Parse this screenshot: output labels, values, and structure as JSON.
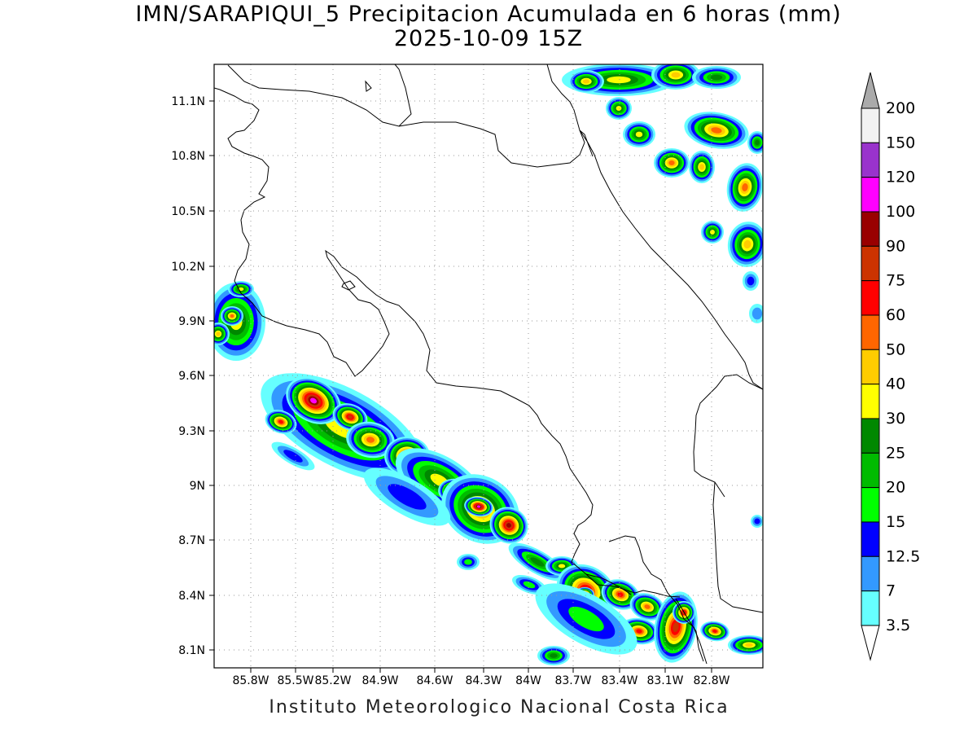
{
  "map": {
    "title_line1": "IMN/SARAPIQUI_5 Precipitacion Acumulada en 6 horas (mm)",
    "title_line2": "2025-10-09 15Z",
    "credit": "Instituto Meteorologico Nacional Costa Rica",
    "lon_labels": [
      "85.8W",
      "85.5W",
      "85.2W",
      "84.9W",
      "84.6W",
      "84.3W",
      "84W",
      "83.7W",
      "83.4W",
      "83.1W",
      "82.8W"
    ],
    "lat_labels": [
      "11.1N",
      "10.8N",
      "10.5N",
      "10.2N",
      "9.9N",
      "9.6N",
      "9.3N",
      "9N",
      "8.7N",
      "8.4N",
      "8.1N"
    ]
  },
  "colorbar": {
    "top_label": "200",
    "bins": [
      {
        "label": "150",
        "color": "#f2f2f2"
      },
      {
        "label": "120",
        "color": "#9933cc"
      },
      {
        "label": "100",
        "color": "#ff00ff"
      },
      {
        "label": "90",
        "color": "#990000"
      },
      {
        "label": "75",
        "color": "#cc3300"
      },
      {
        "label": "60",
        "color": "#ff0000"
      },
      {
        "label": "50",
        "color": "#ff6600"
      },
      {
        "label": "40",
        "color": "#ffcc00"
      },
      {
        "label": "30",
        "color": "#ffff00"
      },
      {
        "label": "25",
        "color": "#008800"
      },
      {
        "label": "20",
        "color": "#00bb00"
      },
      {
        "label": "15",
        "color": "#00ff00"
      },
      {
        "label": "12.5",
        "color": "#0000ff"
      },
      {
        "label": "7",
        "color": "#3399ff"
      },
      {
        "label": "3.5",
        "color": "#66ffff"
      }
    ],
    "top_arrow_color": "#aaaaaa",
    "bottom_arrow_color": "#ffffff"
  }
}
